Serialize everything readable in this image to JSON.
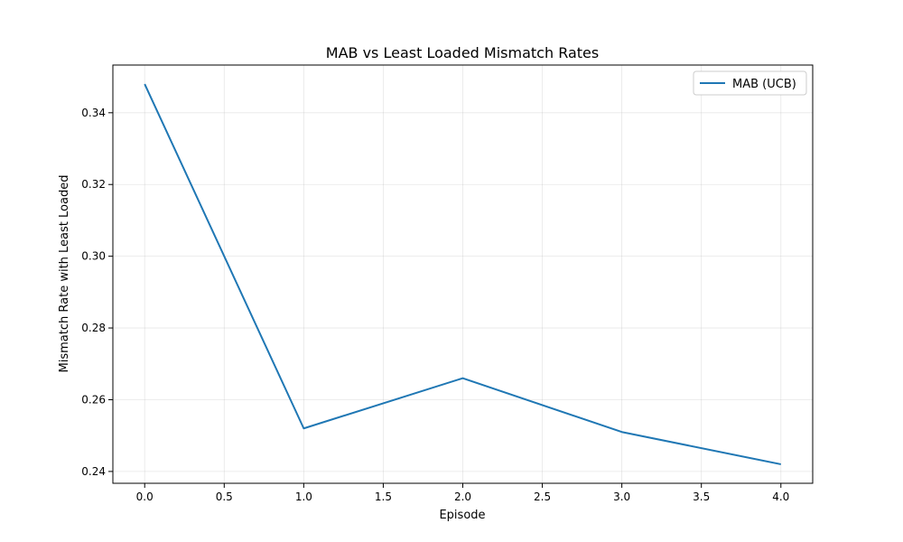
{
  "chart_data": {
    "type": "line",
    "title": "MAB vs Least Loaded Mismatch Rates",
    "xlabel": "Episode",
    "ylabel": "Mismatch Rate with Least Loaded",
    "x": [
      0,
      1,
      2,
      3,
      4
    ],
    "series": [
      {
        "name": "MAB (UCB)",
        "values": [
          0.348,
          0.252,
          0.266,
          0.251,
          0.242
        ],
        "color": "#1f77b4"
      }
    ],
    "xlim": [
      -0.2,
      4.2
    ],
    "ylim": [
      0.2367,
      0.3533
    ],
    "xticks": [
      0.0,
      0.5,
      1.0,
      1.5,
      2.0,
      2.5,
      3.0,
      3.5,
      4.0
    ],
    "xtick_labels": [
      "0.0",
      "0.5",
      "1.0",
      "1.5",
      "2.0",
      "2.5",
      "3.0",
      "3.5",
      "4.0"
    ],
    "yticks": [
      0.24,
      0.26,
      0.28,
      0.3,
      0.32,
      0.34
    ],
    "ytick_labels": [
      "0.24",
      "0.26",
      "0.28",
      "0.30",
      "0.32",
      "0.34"
    ],
    "grid": true,
    "legend": "upper right"
  }
}
